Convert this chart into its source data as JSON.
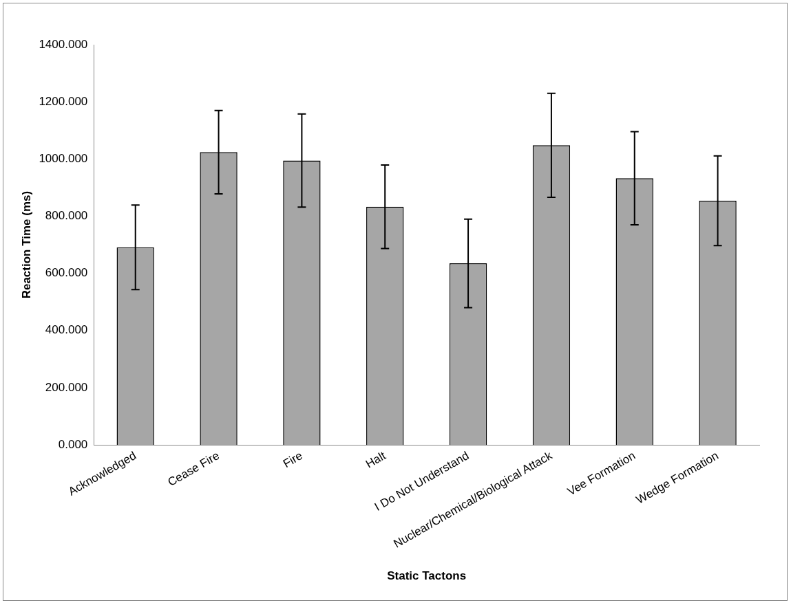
{
  "chart_data": {
    "type": "bar",
    "xlabel": "Static Tactons",
    "ylabel": "Reaction Time (ms)",
    "categories": [
      "Acknowledged",
      "Cease Fire",
      "Fire",
      "Halt",
      "I Do Not Understand",
      "Nuclear/Chemical/Biological Attack",
      "Vee Formation",
      "Wedge Formation"
    ],
    "values": [
      691,
      1024,
      995,
      833,
      635,
      1048,
      933,
      854
    ],
    "errors": [
      148,
      146,
      163,
      146,
      155,
      182,
      163,
      157
    ],
    "color": "#a6a6a6",
    "ylim": [
      0,
      1400
    ],
    "yticks": [
      {
        "value": 0,
        "label": "0.000"
      },
      {
        "value": 200,
        "label": "200.000"
      },
      {
        "value": 400,
        "label": "400.000"
      },
      {
        "value": 600,
        "label": "600.000"
      },
      {
        "value": 800,
        "label": "800.000"
      },
      {
        "value": 1000,
        "label": "1000.000"
      },
      {
        "value": 1200,
        "label": "1200.000"
      },
      {
        "value": 1400,
        "label": "1400.000"
      }
    ],
    "grid": false,
    "legend": false
  }
}
